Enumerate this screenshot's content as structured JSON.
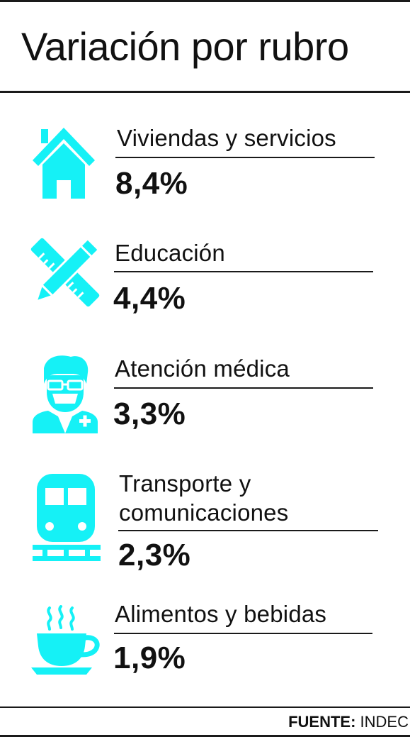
{
  "title": "Variación por rubro",
  "accent_color": "#15f1f6",
  "items": [
    {
      "label": "Viviendas y servicios",
      "value": "8,4%",
      "icon": "house-icon"
    },
    {
      "label": "Educación",
      "value": "4,4%",
      "icon": "pencil-ruler-icon"
    },
    {
      "label": "Atención médica",
      "value": "3,3%",
      "icon": "doctor-icon"
    },
    {
      "label_line1": "Transporte y",
      "label_line2": "comunicaciones",
      "value": "2,3%",
      "icon": "train-icon"
    },
    {
      "label": "Alimentos y bebidas",
      "value": "1,9%",
      "icon": "coffee-cup-icon"
    }
  ],
  "source": {
    "prefix": "FUENTE:",
    "name": "INDEC"
  }
}
